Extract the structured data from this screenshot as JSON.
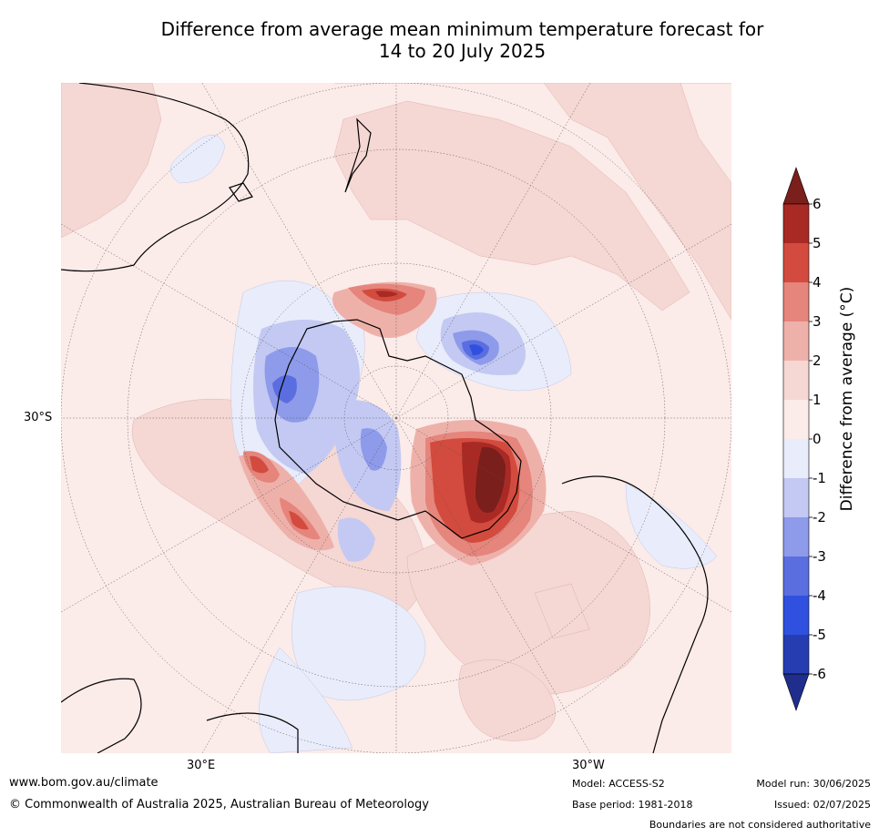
{
  "title": {
    "line1": "Difference from average mean minimum temperature forecast for",
    "line2": "14 to 20 July 2025"
  },
  "map": {
    "projection": "south-polar-stereographic",
    "lat_label": "30°S",
    "lon_labels": {
      "left": "30°E",
      "right": "30°W"
    }
  },
  "colorbar": {
    "label": "Difference from average (°C)",
    "ticks": [
      "6",
      "5",
      "4",
      "3",
      "2",
      "1",
      "0",
      "-1",
      "-2",
      "-3",
      "-4",
      "-5",
      "-6"
    ],
    "colors": [
      "#7a1f1b",
      "#a92a25",
      "#d34b3e",
      "#e5857c",
      "#eeb1aa",
      "#f5d7d4",
      "#fbebe9",
      "#e9ecfa",
      "#c3c9f2",
      "#8e9bea",
      "#5a6ee0",
      "#3050df",
      "#263db2",
      "#1f2e8c"
    ]
  },
  "footer": {
    "website": "www.bom.gov.au/climate",
    "copyright": "© Commonwealth of Australia 2025, Australian Bureau of Meteorology",
    "model": "Model: ACCESS-S2",
    "base_period": "Base period: 1981-2018",
    "model_run": "Model run: 30/06/2025",
    "issued": "Issued: 02/07/2025",
    "disclaimer": "Boundaries are not considered authoritative"
  }
}
